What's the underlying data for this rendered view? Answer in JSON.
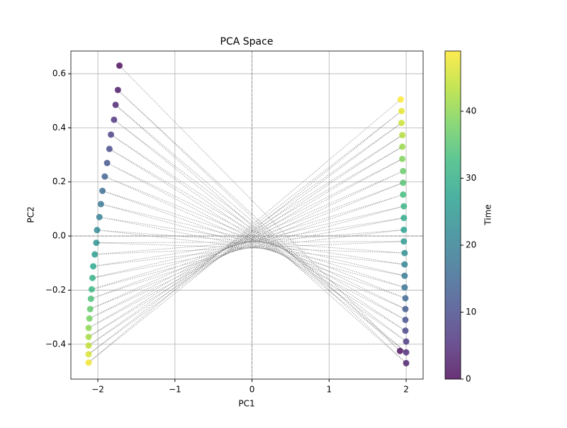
{
  "chart_data": {
    "type": "scatter",
    "title": "PCA Space",
    "x_label": "PC1",
    "y_label": "PC2",
    "colorbar_label": "Time",
    "x": [
      -1.72,
      1.92,
      -1.74,
      2.0,
      -1.77,
      2.0,
      -1.79,
      2.0,
      -1.83,
      1.99,
      -1.85,
      1.99,
      -1.88,
      1.99,
      -1.91,
      1.99,
      -1.94,
      1.98,
      -1.96,
      1.98,
      -1.98,
      1.98,
      -2.01,
      1.98,
      -2.02,
      1.97,
      -2.04,
      1.97,
      -2.06,
      1.97,
      -2.07,
      1.97,
      -2.08,
      1.96,
      -2.09,
      1.96,
      -2.1,
      1.96,
      -2.11,
      1.95,
      -2.12,
      1.95,
      -2.12,
      1.95,
      -2.12,
      1.94,
      -2.12,
      1.94,
      -2.12,
      1.93
    ],
    "y": [
      0.63,
      -0.425,
      0.54,
      -0.47,
      0.485,
      -0.43,
      0.43,
      -0.39,
      0.375,
      -0.35,
      0.322,
      -0.31,
      0.27,
      -0.27,
      0.22,
      -0.23,
      0.167,
      -0.19,
      0.118,
      -0.147,
      0.07,
      -0.105,
      0.022,
      -0.063,
      -0.025,
      -0.02,
      -0.068,
      0.023,
      -0.112,
      0.067,
      -0.155,
      0.11,
      -0.197,
      0.153,
      -0.232,
      0.197,
      -0.27,
      0.24,
      -0.305,
      0.285,
      -0.34,
      0.33,
      -0.373,
      0.373,
      -0.405,
      0.418,
      -0.437,
      0.462,
      -0.468,
      0.505
    ],
    "c": [
      0,
      1,
      2,
      3,
      4,
      5,
      6,
      7,
      8,
      9,
      10,
      11,
      12,
      13,
      14,
      15,
      16,
      17,
      18,
      19,
      20,
      21,
      22,
      23,
      24,
      25,
      26,
      27,
      28,
      29,
      30,
      31,
      32,
      33,
      34,
      35,
      36,
      37,
      38,
      39,
      40,
      41,
      42,
      43,
      44,
      45,
      46,
      47,
      48,
      49
    ],
    "cmap": "viridis",
    "clim": [
      0,
      49
    ],
    "cticks": [
      0,
      10,
      20,
      30,
      40
    ],
    "line_color": "#808080",
    "line_style": "dotted",
    "zero_lines": true,
    "grid": true,
    "xlim": [
      -2.35,
      2.22
    ],
    "ylim": [
      -0.529,
      0.684
    ],
    "xticks": [
      {
        "value": -2,
        "label": "−2"
      },
      {
        "value": -1,
        "label": "−1"
      },
      0,
      1,
      2
    ],
    "yticks": [
      {
        "value": -0.4,
        "label": "−0.4"
      },
      {
        "value": -0.2,
        "label": "−0.2"
      },
      {
        "value": 0,
        "label": "0.0"
      },
      0.2,
      0.4,
      0.6
    ]
  }
}
